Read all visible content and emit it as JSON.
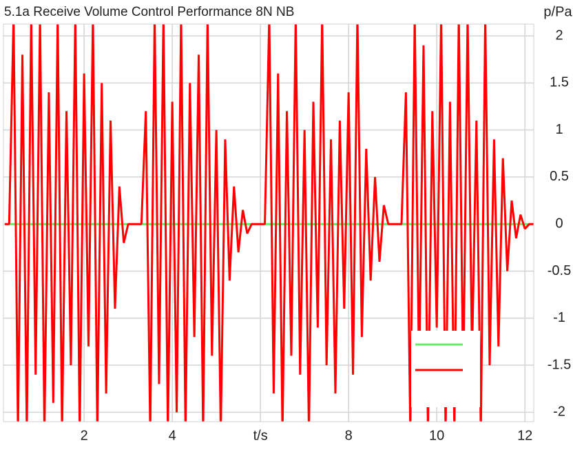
{
  "chart_data": {
    "type": "line",
    "title": "5.1a Receive Volume Control Performance 8N NB",
    "ylabel": "p/Pa",
    "xlim": [
      0.17,
      12.2
    ],
    "ylim": [
      -2.1,
      2.125
    ],
    "xticks": [
      2,
      4,
      {
        "value": 6,
        "label": "t/s"
      },
      8,
      10,
      12
    ],
    "yticks": [
      -2,
      -1.5,
      -1,
      -0.5,
      0,
      0.5,
      1,
      1.5,
      2
    ],
    "grid": true,
    "legend": "lower right",
    "series": [
      {
        "color": "#66ee66",
        "x": [
          0.2,
          12.2
        ],
        "values": [
          0,
          0
        ]
      },
      {
        "color": "#ff0000",
        "x": [
          0.2,
          0.3,
          0.4,
          0.5,
          0.6,
          0.7,
          0.8,
          0.9,
          1.0,
          1.1,
          1.2,
          1.3,
          1.4,
          1.5,
          1.6,
          1.7,
          1.8,
          1.9,
          2.0,
          2.1,
          2.2,
          2.3,
          2.4,
          2.5,
          2.6,
          2.7,
          2.8,
          2.9,
          3.0,
          3.1,
          3.2,
          3.3,
          3.4,
          3.5,
          3.6,
          3.7,
          3.8,
          3.9,
          4.0,
          4.1,
          4.2,
          4.3,
          4.4,
          4.5,
          4.6,
          4.7,
          4.8,
          4.9,
          5.0,
          5.1,
          5.2,
          5.3,
          5.4,
          5.5,
          5.6,
          5.7,
          5.8,
          5.9,
          6.0,
          6.1,
          6.2,
          6.3,
          6.4,
          6.5,
          6.6,
          6.7,
          6.8,
          6.9,
          7.0,
          7.1,
          7.2,
          7.3,
          7.4,
          7.5,
          7.6,
          7.7,
          7.8,
          7.9,
          8.0,
          8.1,
          8.2,
          8.3,
          8.4,
          8.5,
          8.6,
          8.7,
          8.8,
          8.9,
          9.0,
          9.1,
          9.2,
          9.3,
          9.4,
          9.5,
          9.6,
          9.7,
          9.8,
          9.9,
          10.0,
          10.1,
          10.2,
          10.3,
          10.4,
          10.5,
          10.6,
          10.7,
          10.8,
          10.9,
          11.0,
          11.1,
          11.2,
          11.3,
          11.4,
          11.5,
          11.6,
          11.7,
          11.8,
          11.9,
          12.0,
          12.1,
          12.2
        ],
        "values": [
          0,
          0,
          2.2,
          -2.2,
          1.8,
          -2.2,
          2.2,
          -1.6,
          2.2,
          -2.2,
          1.4,
          -1.9,
          2.2,
          -2.2,
          1.2,
          -1.5,
          2.2,
          -2.2,
          1.6,
          -1.3,
          2.2,
          -2.2,
          1.5,
          -1.8,
          1.1,
          -0.9,
          0.4,
          -0.2,
          0,
          0,
          0,
          0,
          1.2,
          -2.2,
          2.2,
          -1.7,
          2.2,
          -2.2,
          1.3,
          -2.0,
          2.2,
          -2.2,
          1.5,
          -1.2,
          1.8,
          -2.2,
          2.2,
          -1.4,
          1.0,
          -2.2,
          0.9,
          -0.6,
          0.4,
          -0.3,
          0.15,
          -0.1,
          0,
          0,
          0,
          0,
          2.2,
          -1.8,
          1.6,
          -2.2,
          1.2,
          -1.4,
          2.2,
          -1.6,
          1.0,
          -2.2,
          1.3,
          -1.1,
          2.2,
          -1.5,
          0.9,
          -1.8,
          1.1,
          -0.9,
          1.4,
          -1.6,
          2.2,
          -1.2,
          0.8,
          -0.6,
          0.5,
          -0.4,
          0.2,
          0,
          0,
          0,
          0,
          1.4,
          -2.2,
          2.2,
          -1.6,
          1.9,
          -2.2,
          1.2,
          -1.1,
          2.2,
          -2.2,
          1.3,
          -2.2,
          2.2,
          -1.7,
          2.2,
          -1.4,
          1.1,
          -2.2,
          2.2,
          -1.5,
          0.9,
          -1.3,
          0.7,
          -0.5,
          0.25,
          -0.15,
          0.1,
          -0.05,
          0,
          0
        ]
      }
    ]
  }
}
